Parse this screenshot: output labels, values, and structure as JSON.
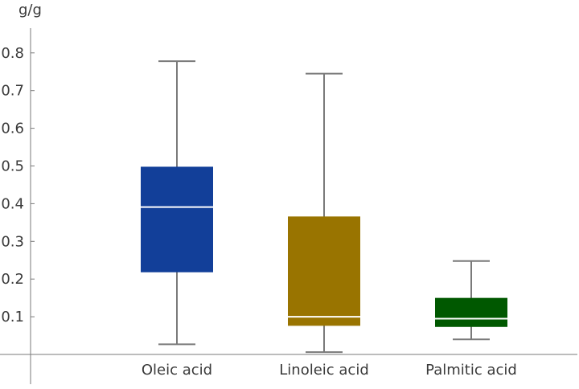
{
  "chart_data": {
    "type": "box",
    "title": "",
    "xlabel": "",
    "ylabel": "g/g",
    "ylim": [
      -0.08,
      0.87
    ],
    "yticks": [
      0.1,
      0.2,
      0.3,
      0.4,
      0.5,
      0.6,
      0.7,
      0.8
    ],
    "ytick_labels": [
      "0.1",
      "0.2",
      "0.3",
      "0.4",
      "0.5",
      "0.6",
      "0.7",
      "0.8"
    ],
    "grid": false,
    "legend": "none",
    "categories": [
      "Oleic acid",
      "Linoleic acid",
      "Palmitic acid"
    ],
    "series": [
      {
        "category": "Oleic acid",
        "min": 0.027,
        "q1": 0.218,
        "median": 0.391,
        "q3": 0.498,
        "max": 0.778,
        "color": "#123f99"
      },
      {
        "category": "Linoleic acid",
        "min": 0.006,
        "q1": 0.076,
        "median": 0.1,
        "q3": 0.366,
        "max": 0.745,
        "color": "#997400"
      },
      {
        "category": "Palmitic acid",
        "min": 0.04,
        "q1": 0.073,
        "median": 0.095,
        "q3": 0.15,
        "max": 0.248,
        "color": "#005800"
      }
    ],
    "colors": {
      "axis": "#7a7a7a",
      "whisker": "#7a7a7a",
      "median_line": "#ffffff",
      "text": "#3a3a3a"
    }
  }
}
